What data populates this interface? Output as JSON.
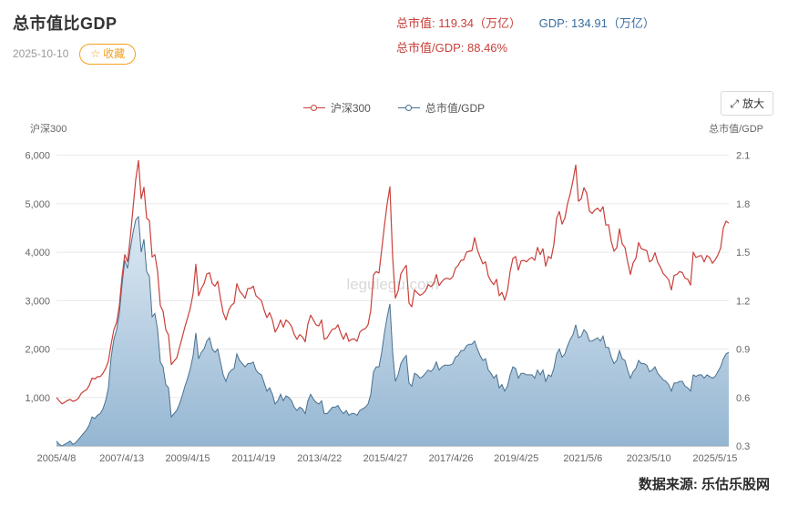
{
  "header": {
    "title": "总市值比GDP",
    "date": "2025-10-10",
    "favorite_icon": "☆",
    "favorite_label": "收藏"
  },
  "stats": {
    "market_cap": "总市值: 119.34（万亿）",
    "gdp": "GDP: 134.91（万亿）",
    "ratio": "总市值/GDP: 88.46%"
  },
  "controls": {
    "zoom_icon": "⤢",
    "zoom_label": "放大"
  },
  "footer": {
    "source": "数据来源: 乐估乐股网"
  },
  "ui_colors": {
    "accent_red": "#c9403a",
    "accent_blue": "#3a6da0",
    "favorite_orange": "#f5a021"
  },
  "chart_data": {
    "type": "line",
    "title": "总市值比GDP",
    "watermark": "legulegu.com",
    "grid": true,
    "legend_position": "top-center",
    "x_unit": "decimal_year",
    "x_start": 2005.29,
    "x_step": 0.0833333,
    "x_ticks": [
      {
        "x": 2005.29,
        "label": "2005/4/8"
      },
      {
        "x": 2007.28,
        "label": "2007/4/13"
      },
      {
        "x": 2009.29,
        "label": "2009/4/15"
      },
      {
        "x": 2011.3,
        "label": "2011/4/19"
      },
      {
        "x": 2013.31,
        "label": "2013/4/22"
      },
      {
        "x": 2015.32,
        "label": "2015/4/27"
      },
      {
        "x": 2017.32,
        "label": "2017/4/26"
      },
      {
        "x": 2019.31,
        "label": "2019/4/25"
      },
      {
        "x": 2021.34,
        "label": "2021/5/6"
      },
      {
        "x": 2023.35,
        "label": "2023/5/10"
      },
      {
        "x": 2025.37,
        "label": "2025/5/15"
      }
    ],
    "y_left": {
      "title": "沪深300",
      "min": 0,
      "max": 6200,
      "ticks": [
        1000,
        2000,
        3000,
        4000,
        5000,
        6000
      ],
      "tick_labels": [
        "1,000",
        "2,000",
        "3,000",
        "4,000",
        "5,000",
        "6,000"
      ]
    },
    "y_right": {
      "title": "总市值/GDP",
      "min": 0.3,
      "max": 2.16,
      "ticks": [
        0.3,
        0.6,
        0.9,
        1.2,
        1.5,
        1.8,
        2.1
      ],
      "tick_labels": [
        "0.3",
        "0.6",
        "0.9",
        "1.2",
        "1.5",
        "1.8",
        "2.1"
      ]
    },
    "colors": {
      "csi300": "#c9403a",
      "mvgdp_line": "#49708f",
      "area_top": "#dbe8f3",
      "area_bottom": "#8cb0ce"
    },
    "series": [
      {
        "name": "沪深300",
        "axis": "left",
        "style": "line",
        "values": [
          1000,
          930,
          870,
          900,
          940,
          960,
          920,
          940,
          980,
          1080,
          1130,
          1160,
          1250,
          1400,
          1380,
          1430,
          1430,
          1500,
          1600,
          1750,
          2100,
          2400,
          2550,
          2900,
          3500,
          3950,
          3800,
          4300,
          4900,
          5500,
          5890,
          5100,
          5340,
          4700,
          4650,
          3900,
          3950,
          3600,
          2900,
          2780,
          2400,
          2290,
          1680,
          1750,
          1817,
          2030,
          2240,
          2460,
          2650,
          2850,
          3150,
          3750,
          3100,
          3250,
          3350,
          3550,
          3576,
          3350,
          3300,
          3400,
          3050,
          2750,
          2600,
          2800,
          2900,
          2950,
          3350,
          3200,
          3130,
          3050,
          3250,
          3250,
          3300,
          3100,
          3050,
          3000,
          2800,
          2650,
          2750,
          2600,
          2350,
          2450,
          2600,
          2450,
          2600,
          2550,
          2470,
          2300,
          2200,
          2300,
          2250,
          2150,
          2520,
          2700,
          2600,
          2500,
          2480,
          2600,
          2200,
          2230,
          2330,
          2410,
          2420,
          2500,
          2330,
          2200,
          2330,
          2160,
          2200,
          2210,
          2160,
          2350,
          2400,
          2420,
          2500,
          2800,
          3530,
          3600,
          3570,
          4050,
          4550,
          5000,
          5350,
          3900,
          3050,
          3200,
          3550,
          3650,
          3730,
          2950,
          2870,
          3220,
          3160,
          3110,
          3140,
          3200,
          3330,
          3290,
          3340,
          3540,
          3310,
          3390,
          3450,
          3460,
          3440,
          3490,
          3670,
          3730,
          3830,
          3840,
          4000,
          4020,
          4030,
          4300,
          4050,
          3900,
          3760,
          3800,
          3510,
          3400,
          3330,
          3440,
          3100,
          3170,
          3010,
          3200,
          3600,
          3870,
          3910,
          3630,
          3820,
          3830,
          3800,
          3860,
          3890,
          3830,
          4100,
          3950,
          4070,
          3710,
          3910,
          3870,
          4160,
          4700,
          4840,
          4580,
          4700,
          5000,
          5210,
          5480,
          5800,
          5050,
          5100,
          5330,
          5220,
          4850,
          4800,
          4870,
          4910,
          4840,
          4940,
          4560,
          4570,
          4220,
          4020,
          4090,
          4480,
          4170,
          4100,
          3800,
          3540,
          3780,
          3870,
          4200,
          4070,
          4050,
          4030,
          3800,
          3840,
          3990,
          3790,
          3690,
          3560,
          3500,
          3430,
          3220,
          3520,
          3540,
          3600,
          3580,
          3460,
          3440,
          3320,
          4000,
          3890,
          3920,
          3930,
          3800,
          3930,
          3890,
          3770,
          3840,
          3940,
          4080,
          4500,
          4640,
          4600
        ]
      },
      {
        "name": "总市值/GDP",
        "axis": "right",
        "style": "area",
        "values": [
          0.33,
          0.31,
          0.3,
          0.31,
          0.32,
          0.33,
          0.31,
          0.32,
          0.34,
          0.36,
          0.38,
          0.4,
          0.43,
          0.48,
          0.47,
          0.49,
          0.5,
          0.53,
          0.58,
          0.66,
          0.85,
          0.96,
          1.02,
          1.12,
          1.3,
          1.45,
          1.4,
          1.52,
          1.62,
          1.7,
          1.72,
          1.5,
          1.58,
          1.38,
          1.35,
          1.1,
          1.12,
          1.02,
          0.82,
          0.79,
          0.68,
          0.66,
          0.48,
          0.5,
          0.52,
          0.56,
          0.61,
          0.67,
          0.72,
          0.78,
          0.86,
          1.0,
          0.84,
          0.88,
          0.9,
          0.95,
          0.97,
          0.9,
          0.88,
          0.9,
          0.82,
          0.74,
          0.7,
          0.75,
          0.77,
          0.78,
          0.87,
          0.83,
          0.81,
          0.79,
          0.81,
          0.81,
          0.82,
          0.77,
          0.75,
          0.74,
          0.69,
          0.64,
          0.66,
          0.62,
          0.56,
          0.58,
          0.62,
          0.58,
          0.61,
          0.6,
          0.58,
          0.54,
          0.52,
          0.54,
          0.53,
          0.5,
          0.58,
          0.62,
          0.59,
          0.57,
          0.56,
          0.58,
          0.5,
          0.5,
          0.52,
          0.54,
          0.54,
          0.55,
          0.52,
          0.5,
          0.52,
          0.49,
          0.5,
          0.5,
          0.49,
          0.52,
          0.53,
          0.54,
          0.56,
          0.62,
          0.76,
          0.79,
          0.79,
          0.88,
          1.0,
          1.1,
          1.18,
          0.88,
          0.7,
          0.74,
          0.81,
          0.84,
          0.86,
          0.69,
          0.67,
          0.75,
          0.74,
          0.72,
          0.73,
          0.75,
          0.77,
          0.76,
          0.78,
          0.82,
          0.77,
          0.79,
          0.8,
          0.8,
          0.8,
          0.81,
          0.85,
          0.86,
          0.89,
          0.89,
          0.92,
          0.93,
          0.93,
          0.95,
          0.9,
          0.86,
          0.83,
          0.84,
          0.77,
          0.75,
          0.72,
          0.74,
          0.66,
          0.68,
          0.64,
          0.67,
          0.74,
          0.79,
          0.78,
          0.72,
          0.75,
          0.75,
          0.74,
          0.74,
          0.74,
          0.72,
          0.77,
          0.74,
          0.77,
          0.7,
          0.74,
          0.73,
          0.78,
          0.87,
          0.9,
          0.85,
          0.87,
          0.92,
          0.96,
          0.99,
          1.05,
          0.97,
          0.98,
          1.02,
          1.0,
          0.95,
          0.95,
          0.96,
          0.97,
          0.95,
          0.98,
          0.91,
          0.91,
          0.85,
          0.81,
          0.83,
          0.89,
          0.84,
          0.83,
          0.77,
          0.72,
          0.76,
          0.78,
          0.83,
          0.81,
          0.81,
          0.8,
          0.76,
          0.77,
          0.79,
          0.75,
          0.73,
          0.71,
          0.7,
          0.68,
          0.64,
          0.69,
          0.69,
          0.7,
          0.7,
          0.67,
          0.66,
          0.64,
          0.74,
          0.73,
          0.74,
          0.74,
          0.72,
          0.74,
          0.73,
          0.72,
          0.73,
          0.76,
          0.79,
          0.84,
          0.87,
          0.88
        ]
      }
    ]
  }
}
